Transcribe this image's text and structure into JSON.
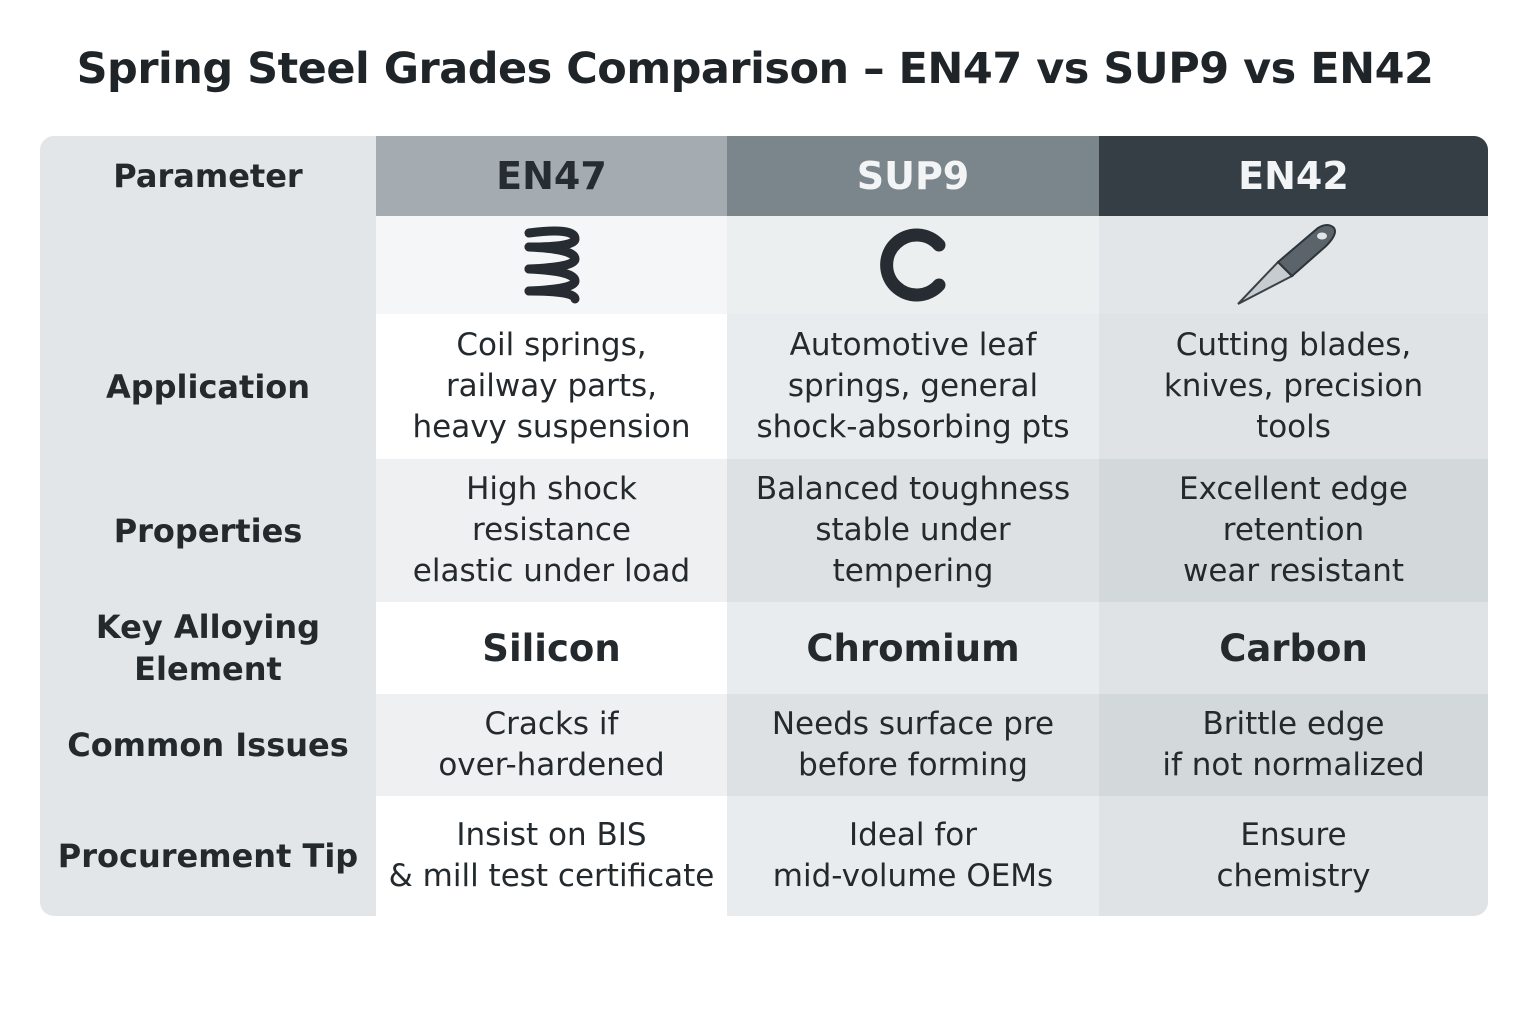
{
  "title": "Spring Steel Grades Comparison – EN47 vs SUP9 vs EN42",
  "header": {
    "parameter": "Parameter",
    "grades": [
      "EN47",
      "SUP9",
      "EN42"
    ]
  },
  "icons": [
    "coil-spring-icon",
    "leaf-spring-c-icon",
    "blade-knife-icon"
  ],
  "colors": {
    "en47_header": "#a4acb1",
    "sup9_header": "#7b858c",
    "en42_header": "#353e45"
  },
  "rows": [
    {
      "label": [
        "Application"
      ],
      "values": [
        [
          "Coil springs,",
          "railway parts,",
          "heavy suspension"
        ],
        [
          "Automotive leaf",
          "springs, general",
          "shock-absorbing pts"
        ],
        [
          "Cutting blades,",
          "knives, precision",
          "tools"
        ]
      ]
    },
    {
      "label": [
        "Properties"
      ],
      "values": [
        [
          "High shock",
          "resistance",
          "elastic under load"
        ],
        [
          "Balanced toughness",
          "stable under",
          "tempering"
        ],
        [
          "Excellent edge",
          "retention",
          "wear resistant"
        ]
      ]
    },
    {
      "label": [
        "Key Alloying",
        "Element"
      ],
      "values": [
        [
          "Silicon"
        ],
        [
          "Chromium"
        ],
        [
          "Carbon"
        ]
      ]
    },
    {
      "label": [
        "Common Issues"
      ],
      "values": [
        [
          "Cracks if",
          "over-hardened"
        ],
        [
          "Needs surface pre",
          "before forming"
        ],
        [
          "Brittle edge",
          "if not normalized"
        ]
      ]
    },
    {
      "label": [
        "Procurement Tip"
      ],
      "values": [
        [
          "Insist on BIS",
          "& mill test certificate"
        ],
        [
          "Ideal for",
          "mid-volume OEMs"
        ],
        [
          "Ensure",
          "chemistry"
        ]
      ]
    }
  ]
}
